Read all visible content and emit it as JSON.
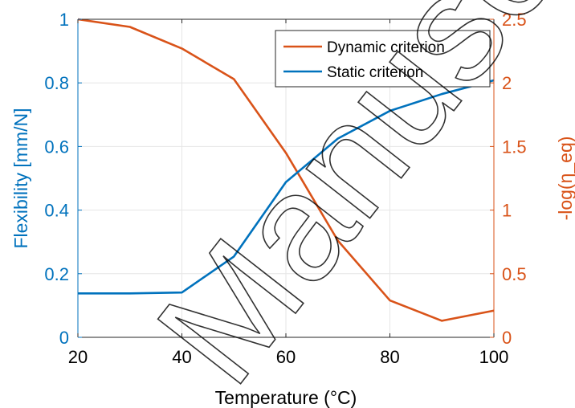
{
  "chart_data": {
    "type": "line",
    "xlabel": "Temperature (°C)",
    "ylabel_left": "Flexibility [mm/N]",
    "ylabel_right": "-log(η_eq)",
    "xlim": [
      20,
      100
    ],
    "ylim_left": [
      0,
      1
    ],
    "ylim_right": [
      0,
      2.5
    ],
    "x_ticks": [
      "20",
      "40",
      "60",
      "80",
      "100"
    ],
    "y_left_ticks": [
      "0",
      "0.2",
      "0.4",
      "0.6",
      "0.8",
      "1"
    ],
    "y_right_ticks": [
      "0",
      "0.5",
      "1",
      "1.5",
      "2",
      "2.5"
    ],
    "grid": true,
    "legend_position": "top-right",
    "series": [
      {
        "name": "Dynamic criterion",
        "axis": "right",
        "color": "#D95319",
        "x": [
          20,
          30,
          40,
          50,
          60,
          70,
          80,
          90,
          100
        ],
        "y": [
          2.5,
          2.44,
          2.27,
          2.03,
          1.45,
          0.76,
          0.29,
          0.13,
          0.21
        ]
      },
      {
        "name": "Static criterion",
        "axis": "left",
        "color": "#0072BD",
        "x": [
          20,
          30,
          40,
          50,
          60,
          70,
          80,
          90,
          100
        ],
        "y": [
          0.138,
          0.138,
          0.141,
          0.254,
          0.488,
          0.625,
          0.712,
          0.765,
          0.808
        ]
      }
    ],
    "left_axis_color": "#0072BD",
    "right_axis_color": "#D95319"
  },
  "watermark": "Manuscript"
}
